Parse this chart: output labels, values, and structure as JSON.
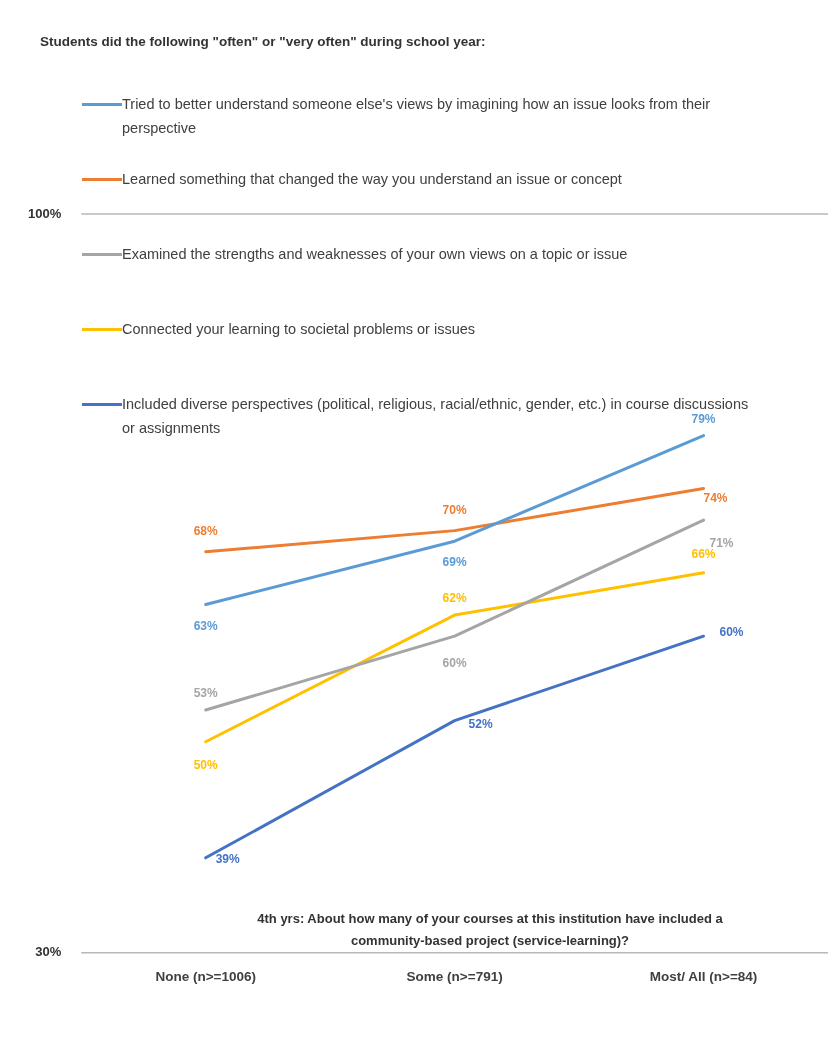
{
  "chart_data": {
    "type": "line",
    "title": "Students did the following \"often\" or \"very often\" during school year:",
    "xlabel": "4th yrs: About how many of your courses at this institution have included a community-based project (service-learning)?",
    "categories": [
      "None (n>=1006)",
      "Some (n>=791)",
      "Most/ All (n>=84)"
    ],
    "series": [
      {
        "name": "Tried to better understand someone else's views by imagining how an issue looks from their perspective",
        "color": "#5b9bd5",
        "values": [
          63,
          69,
          79
        ],
        "value_labels": [
          "63%",
          "69%",
          "79%"
        ]
      },
      {
        "name": "Learned something that changed the way you understand an issue or concept",
        "color": "#ed7d31",
        "values": [
          68,
          70,
          74
        ],
        "value_labels": [
          "68%",
          "70%",
          "74%"
        ]
      },
      {
        "name": "Examined the strengths and weaknesses of your own views on a topic or issue",
        "color": "#a5a5a5",
        "values": [
          53,
          60,
          71
        ],
        "value_labels": [
          "53%",
          "60%",
          "71%"
        ]
      },
      {
        "name": "Connected your learning to societal problems or issues",
        "color": "#ffc000",
        "values": [
          50,
          62,
          66
        ],
        "value_labels": [
          "50%",
          "62%",
          "66%"
        ]
      },
      {
        "name": "Included diverse perspectives (political, religious, racial/ethnic, gender, etc.) in course discussions or assignments",
        "color": "#4472c4",
        "values": [
          39,
          52,
          60
        ],
        "value_labels": [
          "39%",
          "52%",
          "60%"
        ]
      }
    ],
    "ylim": [
      30,
      100
    ],
    "yticks": [
      {
        "value": 30,
        "label": "30%"
      },
      {
        "value": 100,
        "label": "100%"
      }
    ],
    "legend": "top",
    "marker": "none",
    "line_style": "solid"
  }
}
